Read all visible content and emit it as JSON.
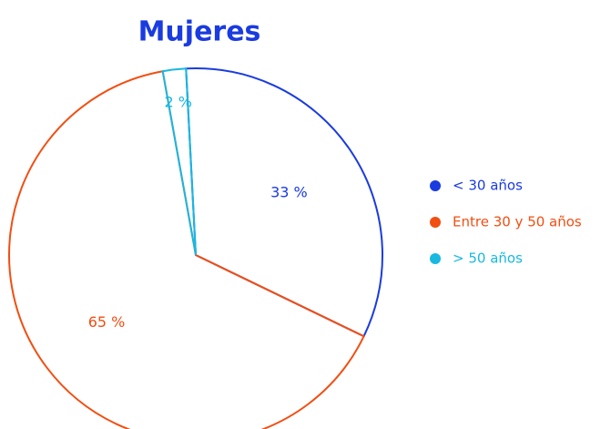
{
  "chart_data": {
    "type": "pie",
    "title": "Mujeres",
    "categories": [
      "< 30 años",
      "Entre 30 y 50 años",
      "> 50 años"
    ],
    "values": [
      33,
      65,
      2
    ],
    "value_labels": [
      "33 %",
      "65 %",
      "2 %"
    ],
    "colors": [
      "#1a3be0",
      "#f24e12",
      "#18b8e0"
    ],
    "legend": "right"
  }
}
